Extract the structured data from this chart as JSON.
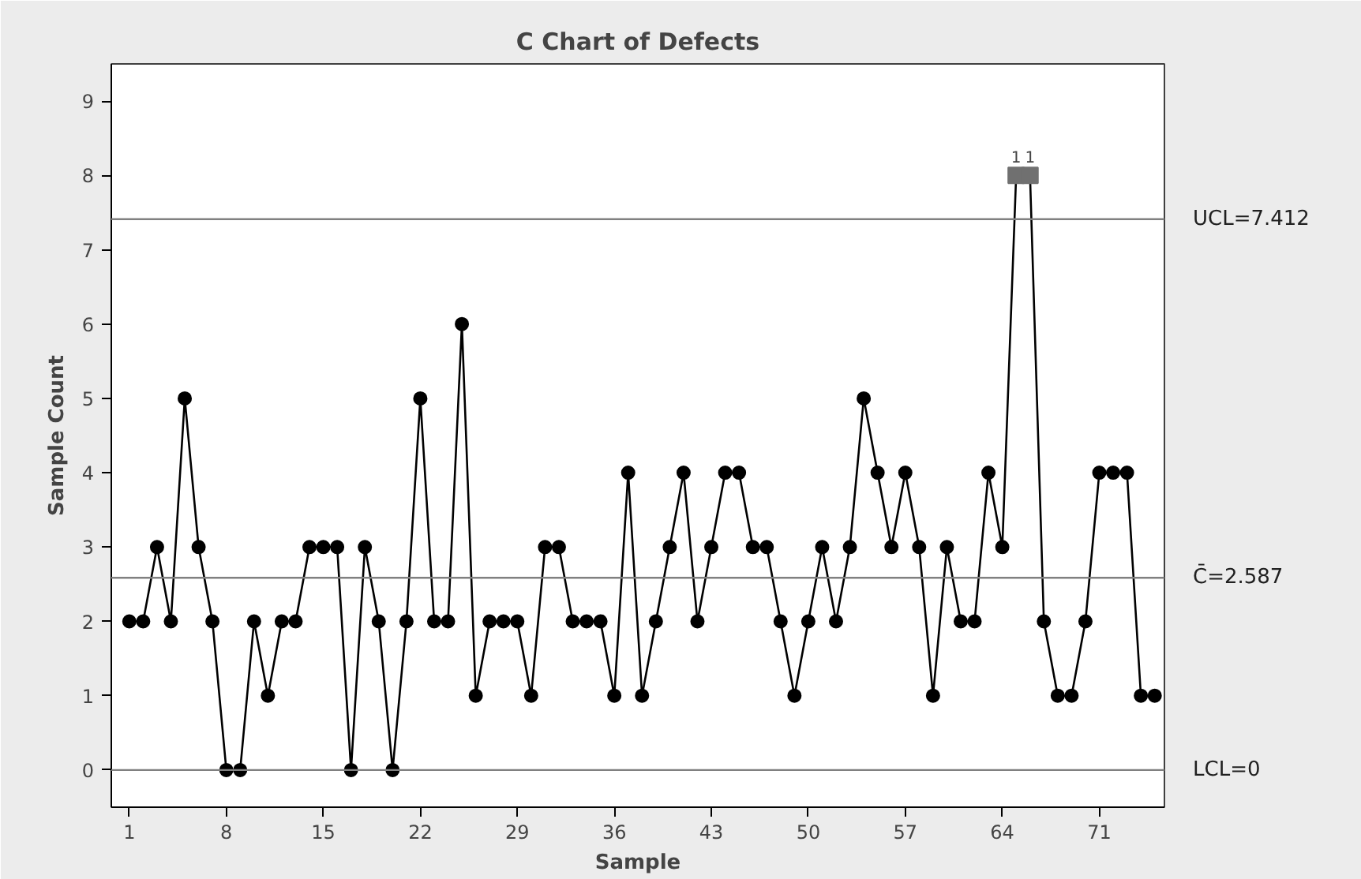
{
  "chart_data": {
    "type": "line",
    "title": "C Chart of Defects",
    "xlabel": "Sample",
    "ylabel": "Sample Count",
    "x": [
      1,
      2,
      3,
      4,
      5,
      6,
      7,
      8,
      9,
      10,
      11,
      12,
      13,
      14,
      15,
      16,
      17,
      18,
      19,
      20,
      21,
      22,
      23,
      24,
      25,
      26,
      27,
      28,
      29,
      30,
      31,
      32,
      33,
      34,
      35,
      36,
      37,
      38,
      39,
      40,
      41,
      42,
      43,
      44,
      45,
      46,
      47,
      48,
      49,
      50,
      51,
      52,
      53,
      54,
      55,
      56,
      57,
      58,
      59,
      60,
      61,
      62,
      63,
      64,
      65,
      66,
      67,
      68,
      69,
      70,
      71,
      72,
      73,
      74,
      75
    ],
    "series": [
      {
        "color": "#000000",
        "values": [
          2,
          2,
          3,
          2,
          5,
          3,
          2,
          0,
          0,
          2,
          1,
          2,
          2,
          3,
          3,
          3,
          0,
          3,
          2,
          0,
          2,
          5,
          2,
          2,
          6,
          1,
          2,
          2,
          2,
          1,
          3,
          3,
          2,
          2,
          2,
          1,
          4,
          1,
          2,
          3,
          4,
          2,
          3,
          4,
          4,
          3,
          3,
          2,
          1,
          2,
          3,
          2,
          3,
          5,
          4,
          3,
          4,
          3,
          1,
          3,
          2,
          2,
          4,
          3,
          8,
          8,
          2,
          1,
          1,
          2,
          4,
          4,
          4,
          1,
          1
        ]
      },
      {
        "type": "scatter",
        "color": "#707070",
        "marker": "square",
        "x": [
          65,
          66
        ],
        "values": [
          8,
          8
        ]
      }
    ],
    "xlim": [
      -0.3,
      75.7
    ],
    "xticks": [
      1,
      8,
      15,
      22,
      29,
      36,
      43,
      50,
      57,
      64,
      71
    ],
    "ylim": [
      -0.5,
      9.5
    ],
    "yticks": [
      0,
      1,
      2,
      3,
      4,
      5,
      6,
      7,
      8,
      9
    ],
    "ref_lines": [
      {
        "axis": "y",
        "value": 7.412,
        "label": "UCL=7.412",
        "color": "#808080"
      },
      {
        "axis": "y",
        "value": 2.587,
        "label": "C̄=2.587",
        "color": "#808080"
      },
      {
        "axis": "y",
        "value": 0,
        "label": "LCL=0",
        "color": "#808080"
      }
    ],
    "annotations": [
      {
        "text": "1",
        "x": 65,
        "y": 8
      },
      {
        "text": "1",
        "x": 66,
        "y": 8
      }
    ],
    "grid": false,
    "marker": "circle",
    "line_style": "solid"
  }
}
